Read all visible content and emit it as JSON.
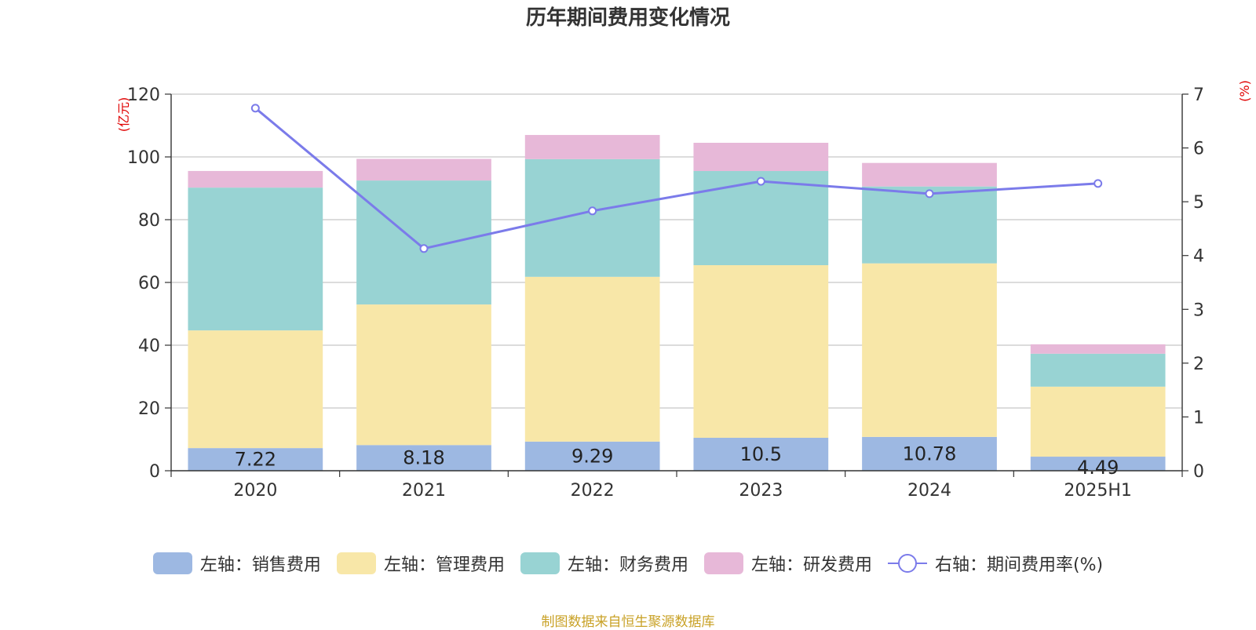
{
  "title": "历年期间费用变化情况",
  "footer": "制图数据来自恒生聚源数据库",
  "colors": {
    "sales": "#9db8e2",
    "mgmt": "#f8e7a8",
    "fin": "#98d3d3",
    "rnd": "#e7b8d8",
    "rate": "#7b7bea",
    "axis_unit": "#e00000"
  },
  "legend": [
    {
      "label": "左轴：销售费用",
      "color": "#9db8e2",
      "kind": "bar"
    },
    {
      "label": "左轴：管理费用",
      "color": "#f8e7a8",
      "kind": "bar"
    },
    {
      "label": "左轴：财务费用",
      "color": "#98d3d3",
      "kind": "bar"
    },
    {
      "label": "左轴：研发费用",
      "color": "#e7b8d8",
      "kind": "bar"
    },
    {
      "label": "右轴：期间费用率(%)",
      "color": "#7b7bea",
      "kind": "line"
    }
  ],
  "chart_data": {
    "type": "bar",
    "stacked": true,
    "categories": [
      "2020",
      "2021",
      "2022",
      "2023",
      "2024",
      "2025H1"
    ],
    "series": [
      {
        "name": "左轴：销售费用",
        "axis": "left",
        "values": [
          7.22,
          8.18,
          9.29,
          10.5,
          10.78,
          4.49
        ],
        "data_labels": [
          "7.22",
          "8.18",
          "9.29",
          "10.5",
          "10.78",
          "4.49"
        ]
      },
      {
        "name": "左轴：管理费用",
        "axis": "left",
        "values": [
          37.5,
          44.8,
          52.5,
          55.0,
          55.3,
          22.3
        ]
      },
      {
        "name": "左轴：财务费用",
        "axis": "left",
        "values": [
          45.5,
          39.5,
          37.5,
          30.0,
          24.5,
          10.5
        ]
      },
      {
        "name": "左轴：研发费用",
        "axis": "left",
        "values": [
          5.3,
          6.9,
          7.7,
          9.0,
          7.5,
          3.0
        ]
      },
      {
        "name": "右轴：期间费用率(%)",
        "axis": "right",
        "type": "line",
        "values": [
          6.74,
          4.13,
          4.83,
          5.38,
          5.15,
          5.34
        ]
      }
    ],
    "y_left": {
      "unit_label": "(亿元)",
      "min": 0,
      "max": 120,
      "ticks": [
        "0",
        "20",
        "40",
        "60",
        "80",
        "100",
        "120"
      ]
    },
    "y_right": {
      "unit_label": "(%)",
      "min": 0,
      "max": 7,
      "ticks": [
        "0",
        "1",
        "2",
        "3",
        "4",
        "5",
        "6",
        "7"
      ]
    },
    "grid": true,
    "legend_position": "bottom"
  }
}
